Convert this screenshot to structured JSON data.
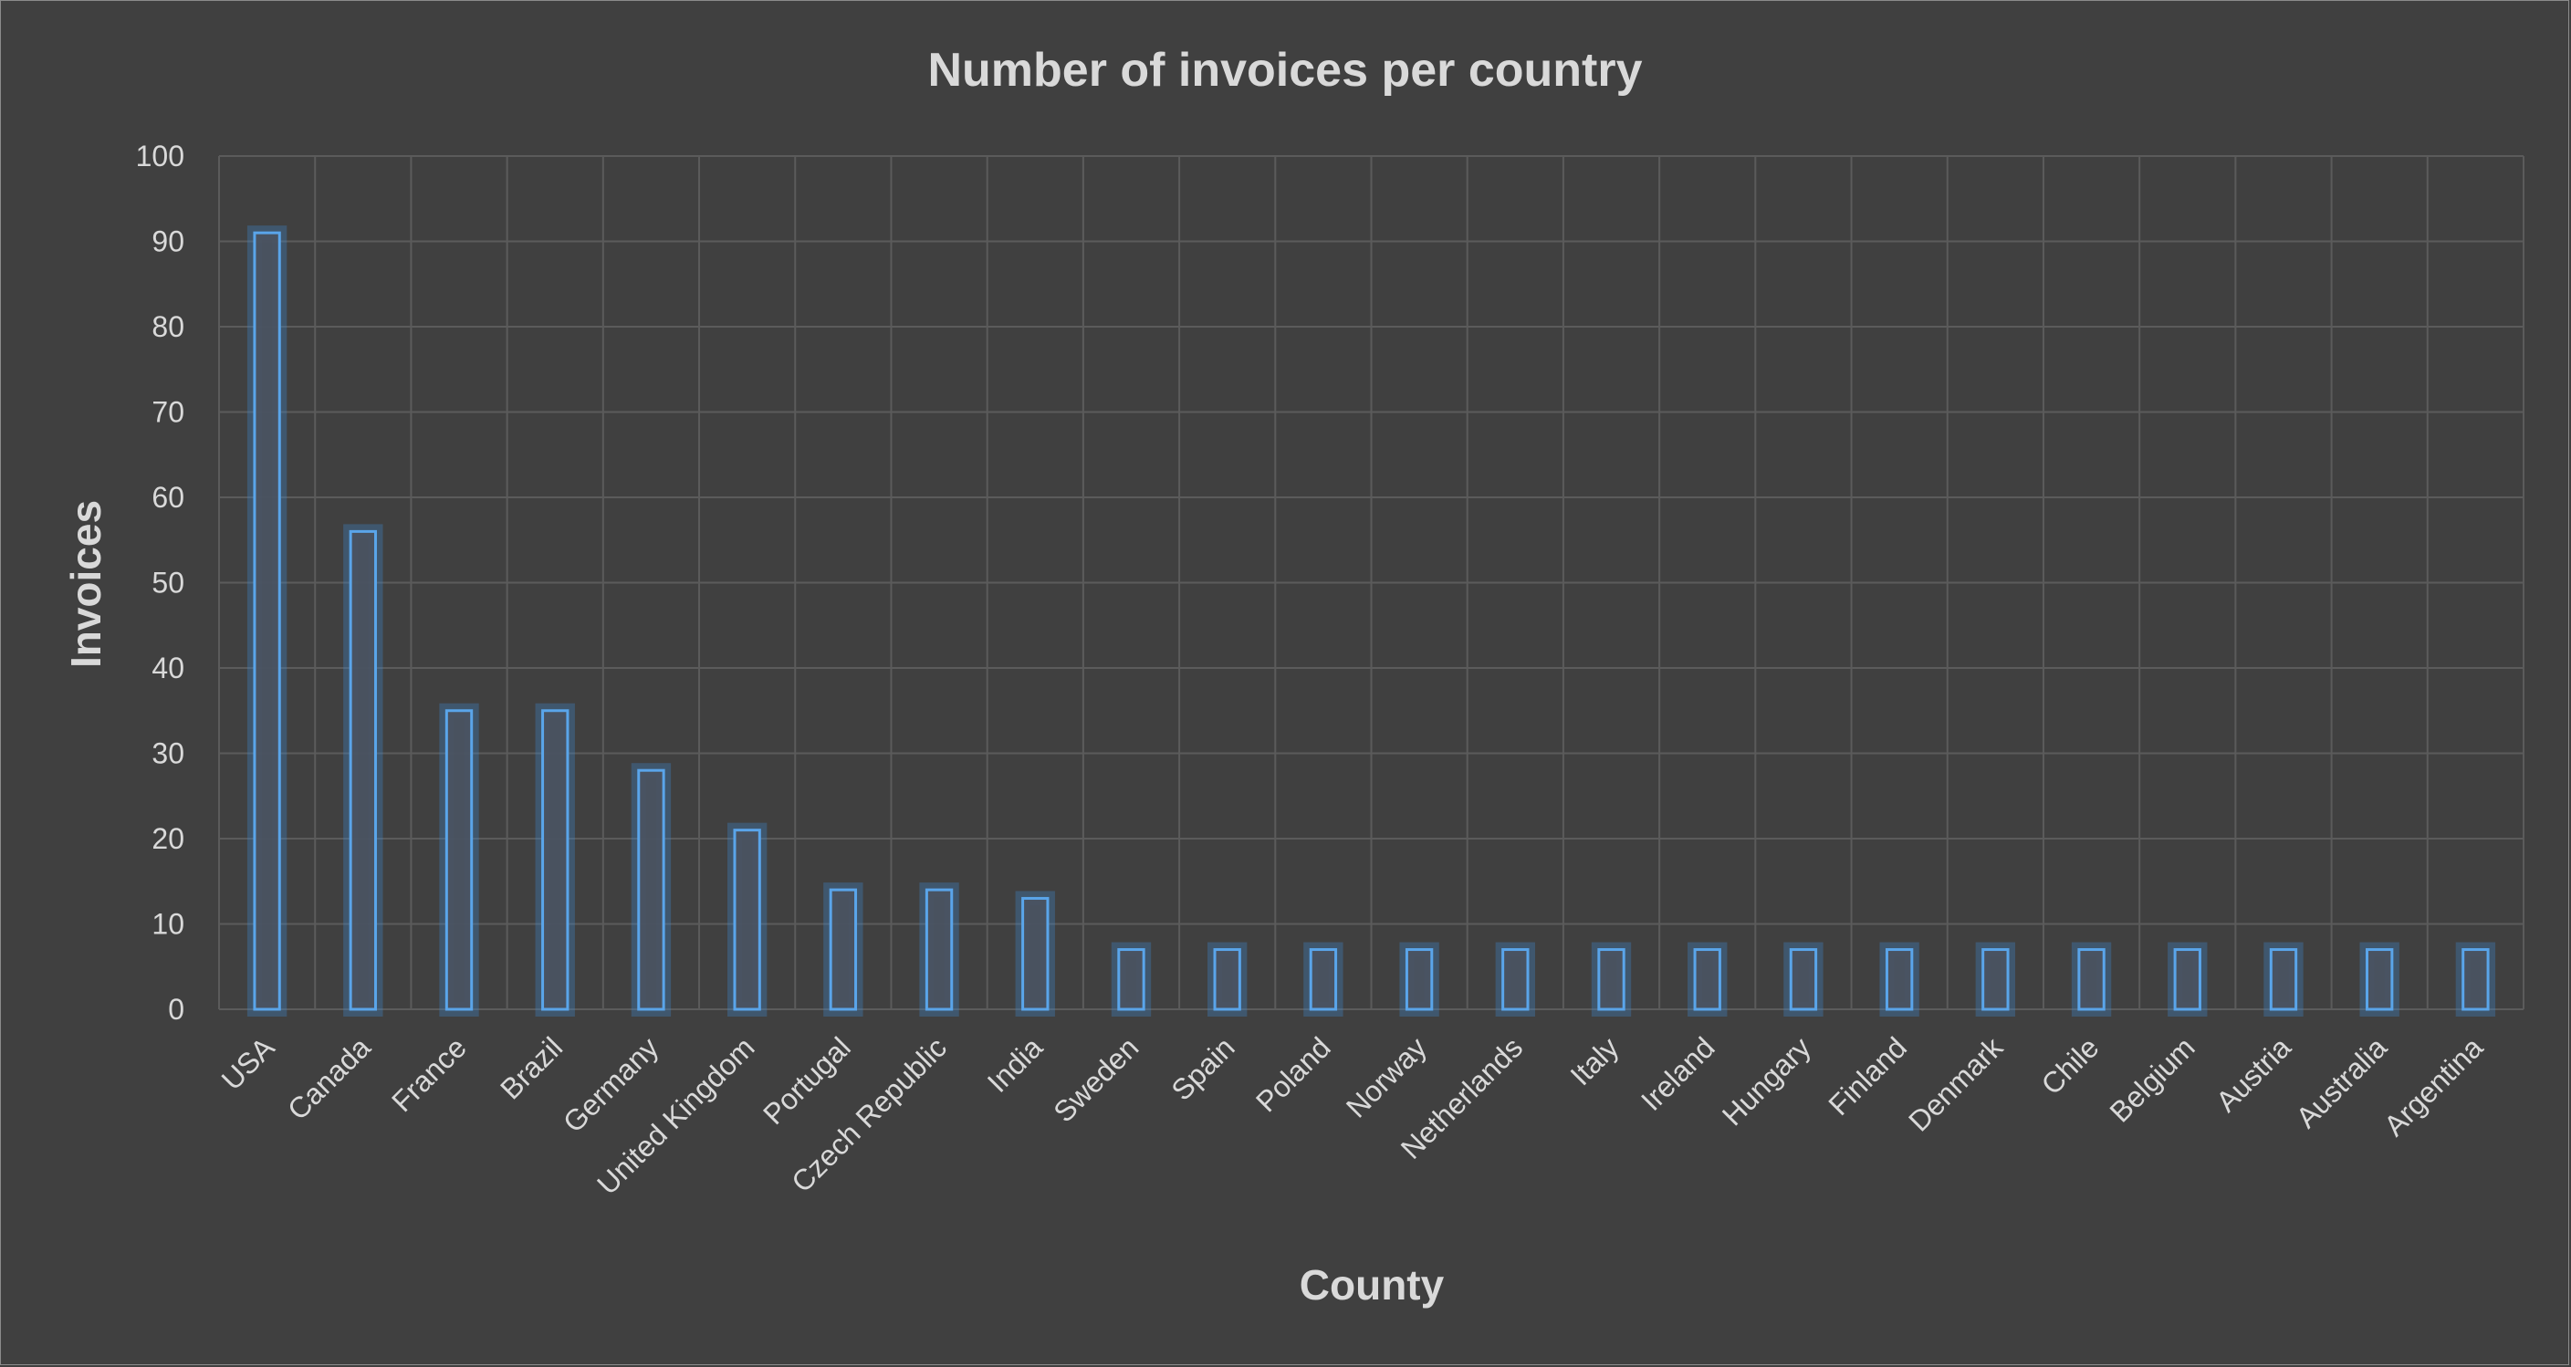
{
  "chart_data": {
    "type": "bar",
    "title": "Number of invoices per country",
    "xlabel": "County",
    "ylabel": "Invoices",
    "ylim": [
      0,
      100
    ],
    "yticks": [
      0,
      10,
      20,
      30,
      40,
      50,
      60,
      70,
      80,
      90,
      100
    ],
    "grid": true,
    "legend": "none",
    "categories": [
      "USA",
      "Canada",
      "France",
      "Brazil",
      "Germany",
      "United Kingdom",
      "Portugal",
      "Czech Republic",
      "India",
      "Sweden",
      "Spain",
      "Poland",
      "Norway",
      "Netherlands",
      "Italy",
      "Ireland",
      "Hungary",
      "Finland",
      "Denmark",
      "Chile",
      "Belgium",
      "Austria",
      "Australia",
      "Argentina"
    ],
    "values": [
      91,
      56,
      35,
      35,
      28,
      21,
      14,
      14,
      13,
      7,
      7,
      7,
      7,
      7,
      7,
      7,
      7,
      7,
      7,
      7,
      7,
      7,
      7,
      7
    ],
    "colors": {
      "background": "#404040",
      "grid": "#5b5b5b",
      "bar_outline": "#5aa5ea",
      "bar_fill": "#4a5361",
      "text": "#d9d9d9"
    }
  }
}
